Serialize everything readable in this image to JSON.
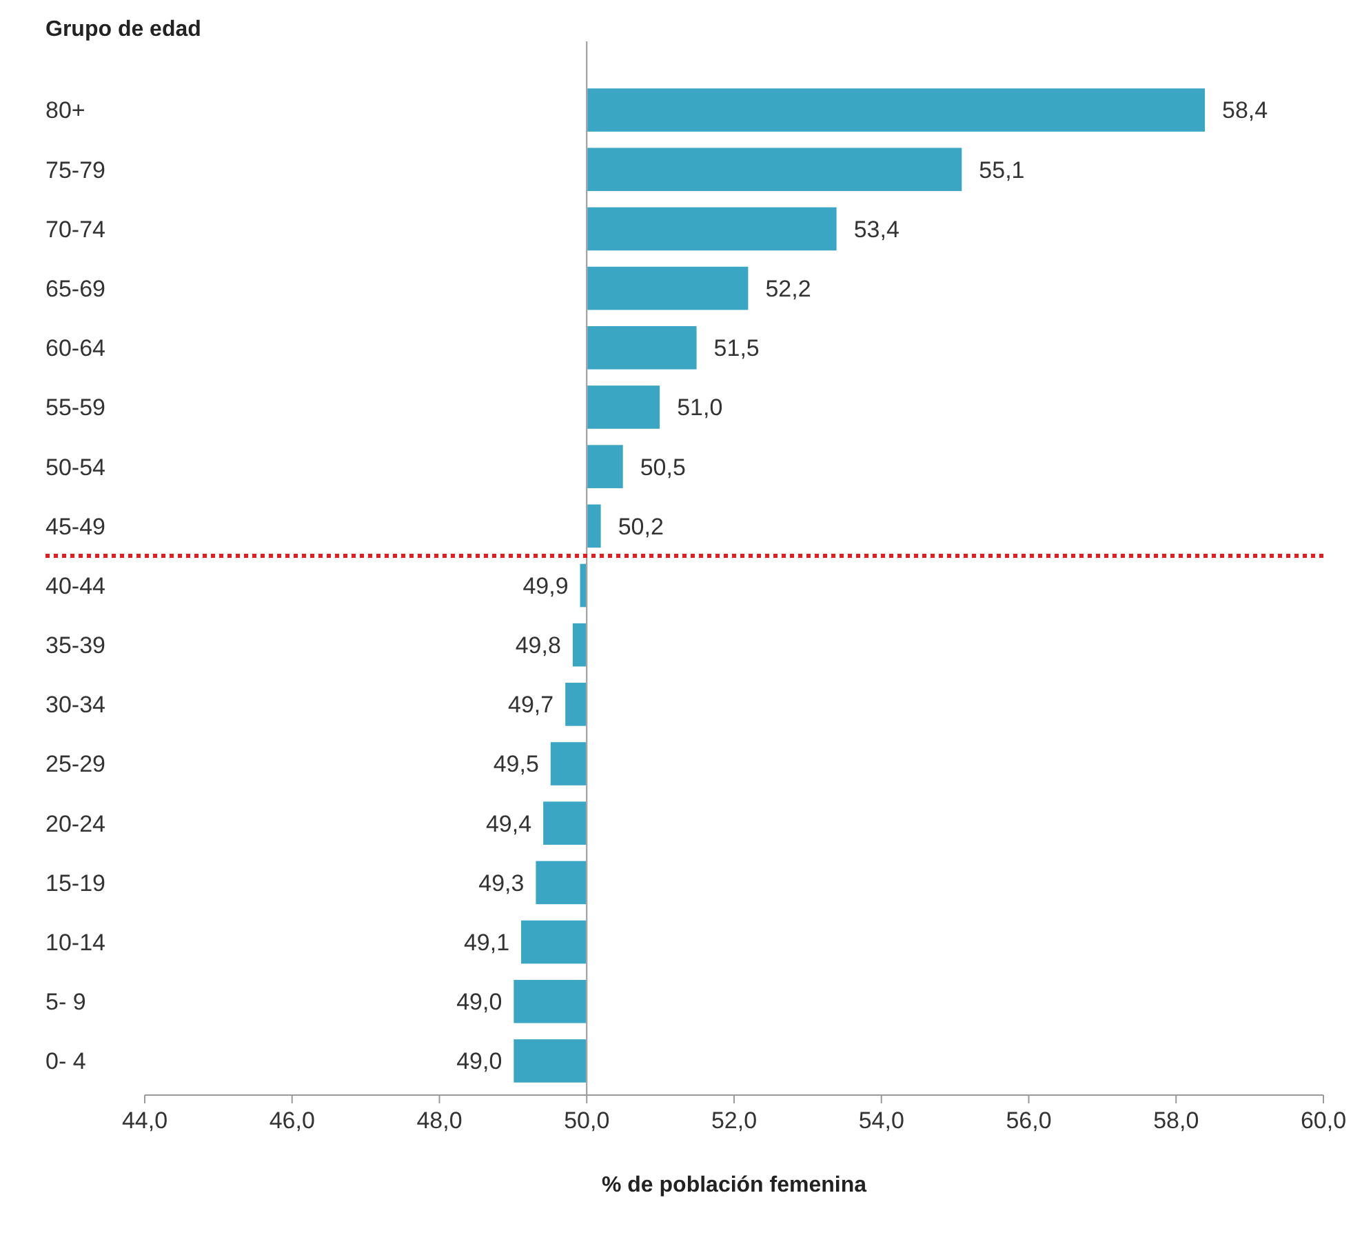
{
  "chart_data": {
    "type": "bar",
    "orientation": "horizontal",
    "ylabel": "Grupo de edad",
    "xlabel": "% de población femenina",
    "categories": [
      "80+",
      "75-79",
      "70-74",
      "65-69",
      "60-64",
      "55-59",
      "50-54",
      "45-49",
      "40-44",
      "35-39",
      "30-34",
      "25-29",
      "20-24",
      "15-19",
      "10-14",
      "5- 9",
      "0- 4"
    ],
    "base": [
      50,
      50,
      50,
      50,
      50,
      50,
      50,
      50,
      50,
      50,
      50,
      50,
      50,
      50,
      50,
      50,
      50
    ],
    "values": [
      8.4,
      5.1,
      3.4,
      2.2,
      1.5,
      1.0,
      0.5,
      0.2,
      -0.1,
      -0.2,
      -0.3,
      -0.5,
      -0.6,
      -0.7,
      -0.9,
      -1.0,
      -1.0
    ],
    "value_labels": [
      "58,4",
      "55,1",
      "53,4",
      "52,2",
      "51,5",
      "51,0",
      "50,5",
      "50,2",
      "49,9",
      "49,8",
      "49,7",
      "49,5",
      "49,4",
      "49,3",
      "49,1",
      "49,0",
      "49,0"
    ],
    "color": "#3aa6c4",
    "xlim": [
      44,
      60
    ],
    "xticks": [
      {
        "value": 44,
        "label": "44,0"
      },
      {
        "value": 46,
        "label": "46,0"
      },
      {
        "value": 48,
        "label": "48,0"
      },
      {
        "value": 50,
        "label": "50,0"
      },
      {
        "value": 52,
        "label": "52,0"
      },
      {
        "value": 54,
        "label": "54,0"
      },
      {
        "value": 56,
        "label": "56,0"
      },
      {
        "value": 58,
        "label": "58,0"
      },
      {
        "value": 60,
        "label": "60,0"
      }
    ],
    "ref_lines": [
      {
        "axis": "y",
        "value": "45-49",
        "color": "#e02020",
        "line_style": "dotted"
      },
      {
        "axis": "x",
        "value": 50,
        "color": "#999999",
        "line_style": "solid"
      }
    ],
    "grid": false
  }
}
